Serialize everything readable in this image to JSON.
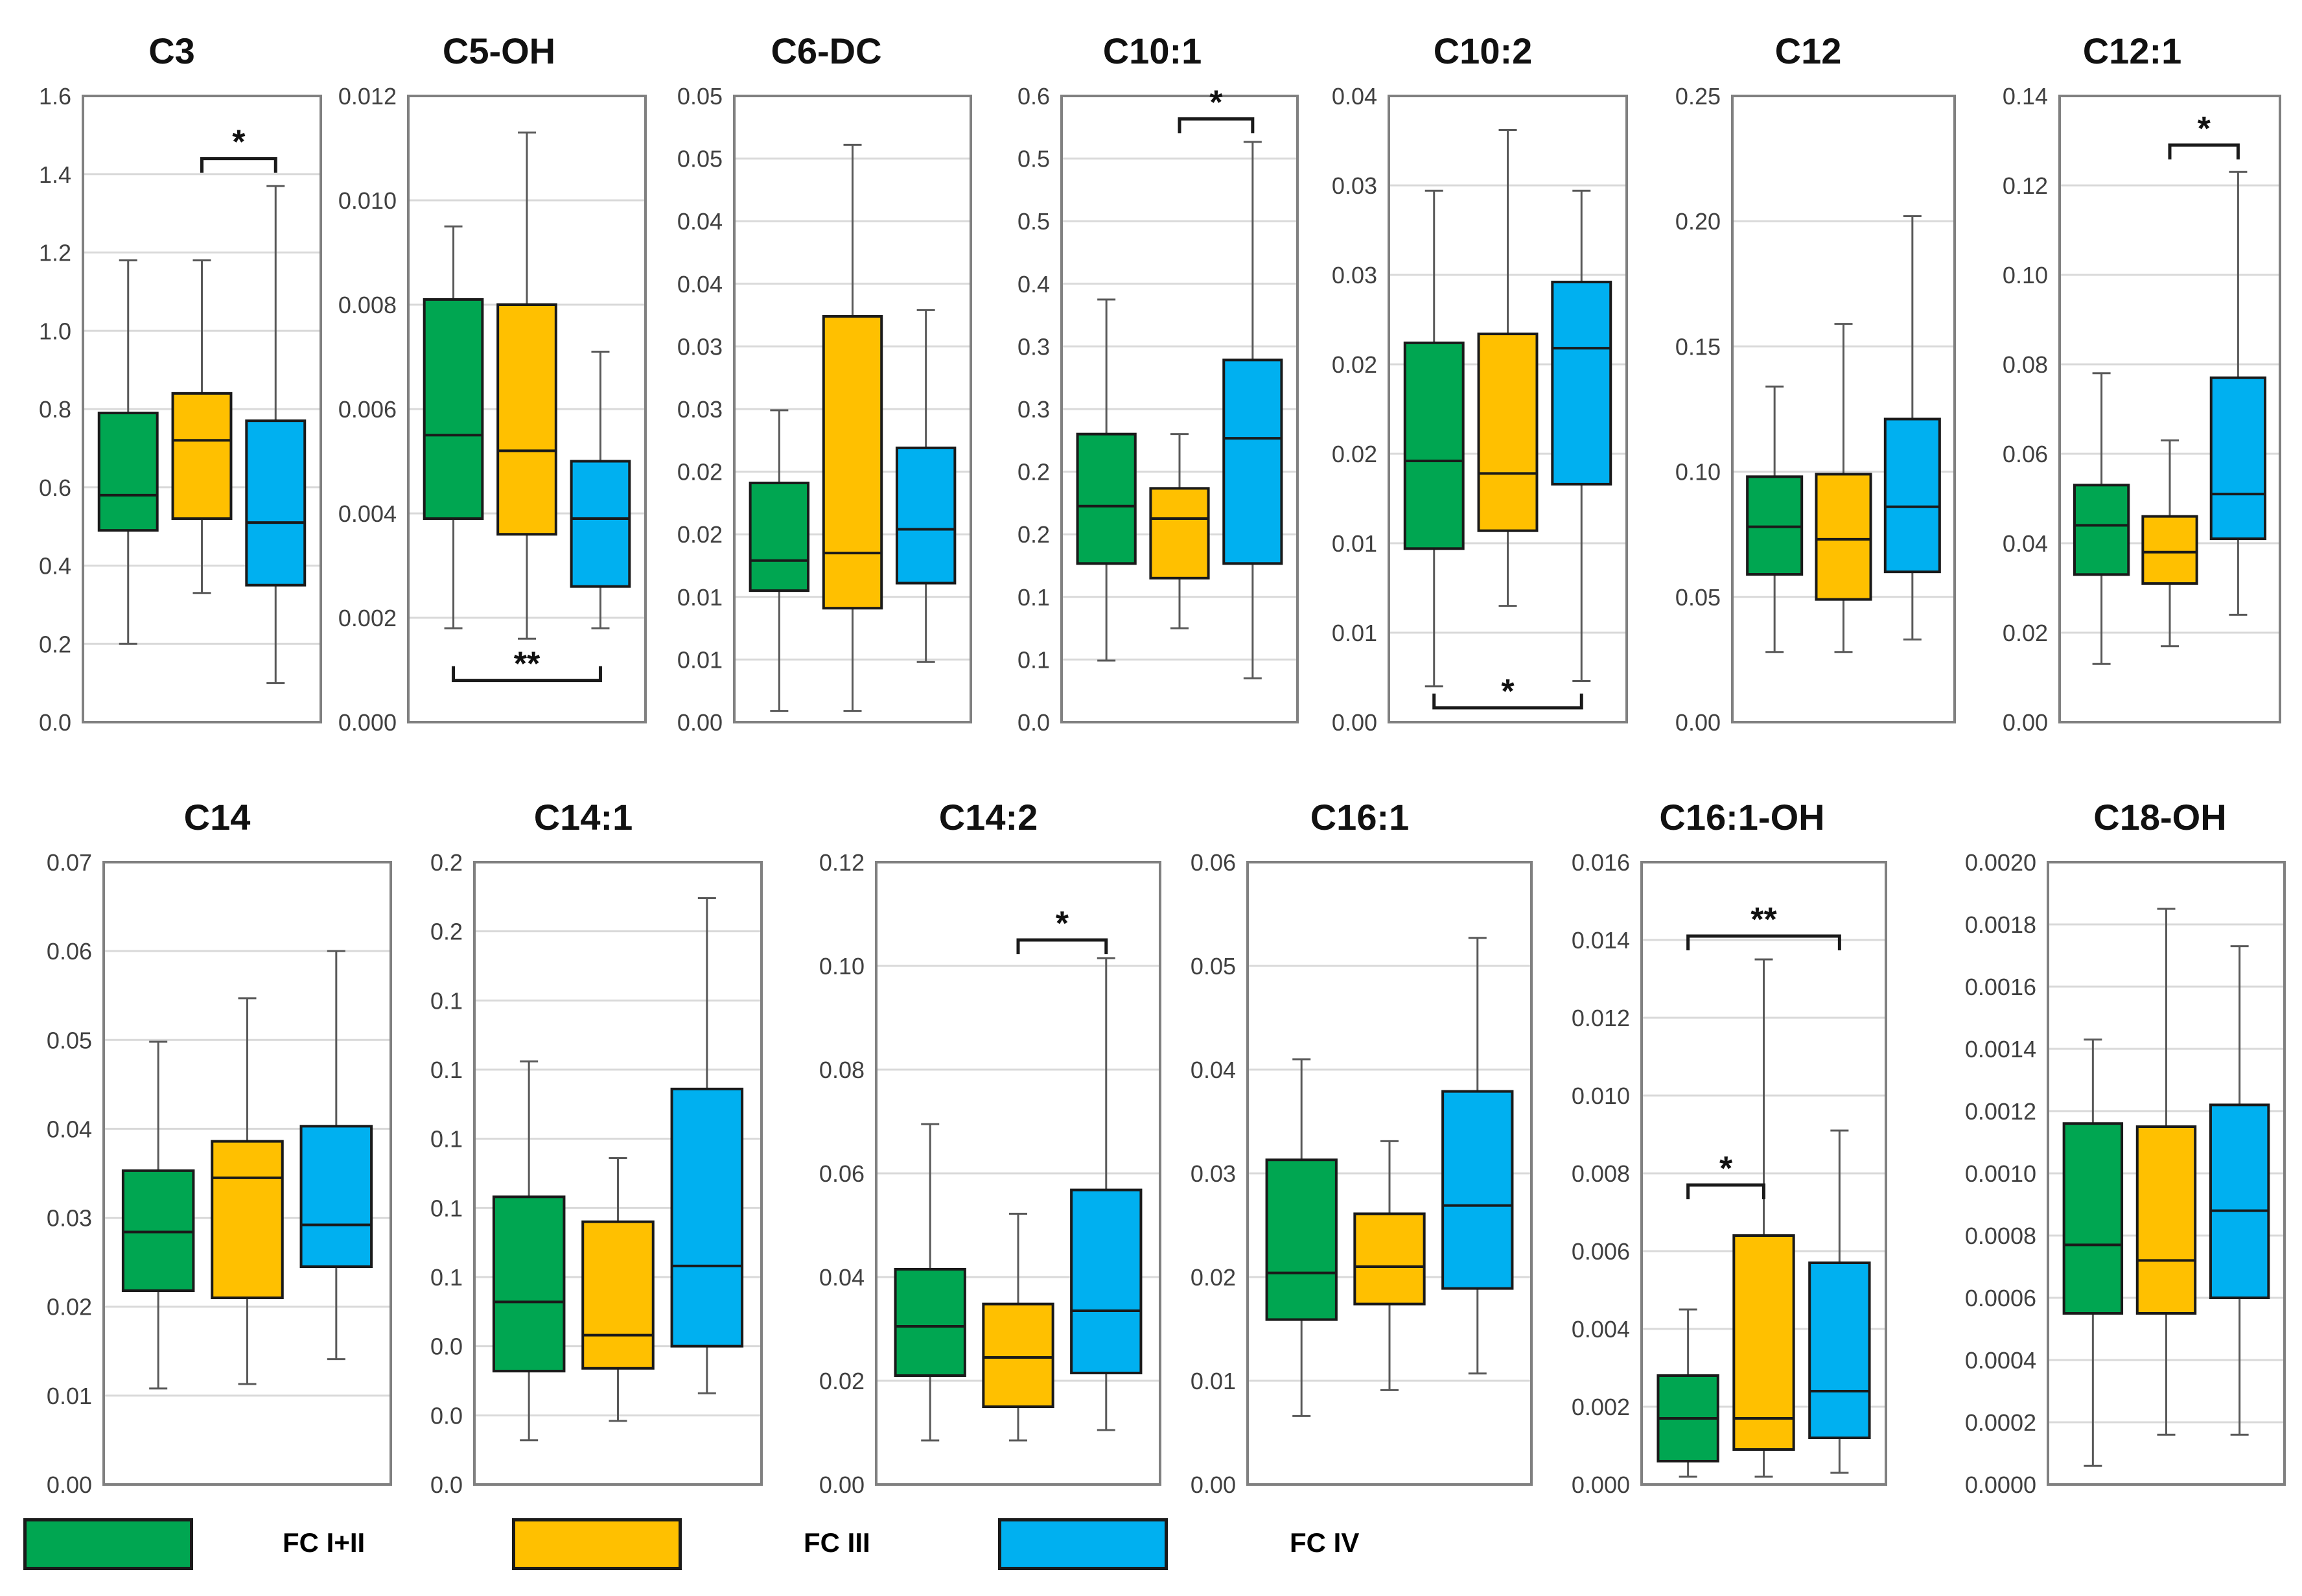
{
  "legend": {
    "items": [
      {
        "label": "FC I+II",
        "color": "#00a651"
      },
      {
        "label": "FC III",
        "color": "#ffc000"
      },
      {
        "label": "FC IV",
        "color": "#00b0f0"
      }
    ]
  },
  "chart_data": [
    {
      "type": "box",
      "title": "C3",
      "ylim": [
        0,
        1.6
      ],
      "ticks": [
        "0.0",
        "0.2",
        "0.4",
        "0.6",
        "0.8",
        "1.0",
        "1.2",
        "1.4",
        "1.6"
      ],
      "series": [
        {
          "name": "FC I+II",
          "color": "#00a651",
          "min": 0.2,
          "q1": 0.49,
          "median": 0.58,
          "q3": 0.79,
          "max": 1.18
        },
        {
          "name": "FC III",
          "color": "#ffc000",
          "min": 0.33,
          "q1": 0.52,
          "median": 0.72,
          "q3": 0.84,
          "max": 1.18
        },
        {
          "name": "FC IV",
          "color": "#00b0f0",
          "min": 0.1,
          "q1": 0.35,
          "median": 0.51,
          "q3": 0.77,
          "max": 1.37
        }
      ],
      "significance": [
        {
          "from": 1,
          "to": 2,
          "label": "*",
          "value": 1.44,
          "pos": "top"
        }
      ]
    },
    {
      "type": "box",
      "title": "C5-OH",
      "ylim": [
        0,
        0.012
      ],
      "ticks": [
        "0.000",
        "0.002",
        "0.004",
        "0.006",
        "0.008",
        "0.010",
        "0.012"
      ],
      "series": [
        {
          "name": "FC I+II",
          "color": "#00a651",
          "min": 0.0018,
          "q1": 0.0039,
          "median": 0.0055,
          "q3": 0.0081,
          "max": 0.0095
        },
        {
          "name": "FC III",
          "color": "#ffc000",
          "min": 0.0016,
          "q1": 0.0036,
          "median": 0.0052,
          "q3": 0.008,
          "max": 0.0113
        },
        {
          "name": "FC IV",
          "color": "#00b0f0",
          "min": 0.0018,
          "q1": 0.0026,
          "median": 0.0039,
          "q3": 0.005,
          "max": 0.0071
        }
      ],
      "significance": [
        {
          "from": 0,
          "to": 2,
          "label": "**",
          "value": 0.0008,
          "pos": "bottom"
        }
      ]
    },
    {
      "type": "box",
      "title": "C6-DC",
      "ylim": [
        0,
        0.05
      ],
      "ticks": [
        "0.00",
        "0.01",
        "0.01",
        "0.02",
        "0.02",
        "0.03",
        "0.03",
        "0.04",
        "0.04",
        "0.05",
        "0.05"
      ],
      "series": [
        {
          "name": "FC I+II",
          "color": "#00a651",
          "min": 0.0009,
          "q1": 0.0105,
          "median": 0.0129,
          "q3": 0.0191,
          "max": 0.0249
        },
        {
          "name": "FC III",
          "color": "#ffc000",
          "min": 0.0009,
          "q1": 0.0091,
          "median": 0.0135,
          "q3": 0.0324,
          "max": 0.0461
        },
        {
          "name": "FC IV",
          "color": "#00b0f0",
          "min": 0.0048,
          "q1": 0.0111,
          "median": 0.0154,
          "q3": 0.0219,
          "max": 0.0329
        }
      ],
      "significance": []
    },
    {
      "type": "box",
      "title": "C10:1",
      "ylim": [
        0,
        0.6
      ],
      "ticks": [
        "0.0",
        "0.1",
        "0.1",
        "0.2",
        "0.2",
        "0.3",
        "0.3",
        "0.4",
        "0.5",
        "0.5",
        "0.6"
      ],
      "series": [
        {
          "name": "FC I+II",
          "color": "#00a651",
          "min": 0.059,
          "q1": 0.152,
          "median": 0.207,
          "q3": 0.276,
          "max": 0.405
        },
        {
          "name": "FC III",
          "color": "#ffc000",
          "min": 0.09,
          "q1": 0.138,
          "median": 0.195,
          "q3": 0.224,
          "max": 0.276
        },
        {
          "name": "FC IV",
          "color": "#00b0f0",
          "min": 0.042,
          "q1": 0.152,
          "median": 0.272,
          "q3": 0.347,
          "max": 0.556
        }
      ],
      "significance": [
        {
          "from": 1,
          "to": 2,
          "label": "*",
          "value": 0.578,
          "pos": "top"
        }
      ]
    },
    {
      "type": "box",
      "title": "C10:2",
      "ylim": [
        0,
        0.035
      ],
      "ticks": [
        "0.00",
        "0.01",
        "0.01",
        "0.02",
        "0.02",
        "0.03",
        "0.03",
        "0.04"
      ],
      "series": [
        {
          "name": "FC I+II",
          "color": "#00a651",
          "min": 0.002,
          "q1": 0.0097,
          "median": 0.0146,
          "q3": 0.0212,
          "max": 0.0297
        },
        {
          "name": "FC III",
          "color": "#ffc000",
          "min": 0.0065,
          "q1": 0.0107,
          "median": 0.0139,
          "q3": 0.0217,
          "max": 0.0331
        },
        {
          "name": "FC IV",
          "color": "#00b0f0",
          "min": 0.0023,
          "q1": 0.0133,
          "median": 0.0209,
          "q3": 0.0246,
          "max": 0.0297
        }
      ],
      "significance": [
        {
          "from": 0,
          "to": 2,
          "label": "*",
          "value": 0.0008,
          "pos": "bottom"
        }
      ]
    },
    {
      "type": "box",
      "title": "C12",
      "ylim": [
        0,
        0.25
      ],
      "ticks": [
        "0.00",
        "0.05",
        "0.10",
        "0.15",
        "0.20",
        "0.25"
      ],
      "series": [
        {
          "name": "FC I+II",
          "color": "#00a651",
          "min": 0.028,
          "q1": 0.059,
          "median": 0.078,
          "q3": 0.098,
          "max": 0.134
        },
        {
          "name": "FC III",
          "color": "#ffc000",
          "min": 0.028,
          "q1": 0.049,
          "median": 0.073,
          "q3": 0.099,
          "max": 0.159
        },
        {
          "name": "FC IV",
          "color": "#00b0f0",
          "min": 0.033,
          "q1": 0.06,
          "median": 0.086,
          "q3": 0.121,
          "max": 0.202
        }
      ],
      "significance": []
    },
    {
      "type": "box",
      "title": "C12:1",
      "ylim": [
        0,
        0.14
      ],
      "ticks": [
        "0.00",
        "0.02",
        "0.04",
        "0.06",
        "0.08",
        "0.10",
        "0.12",
        "0.14"
      ],
      "series": [
        {
          "name": "FC I+II",
          "color": "#00a651",
          "min": 0.013,
          "q1": 0.033,
          "median": 0.044,
          "q3": 0.053,
          "max": 0.078
        },
        {
          "name": "FC III",
          "color": "#ffc000",
          "min": 0.017,
          "q1": 0.031,
          "median": 0.038,
          "q3": 0.046,
          "max": 0.063
        },
        {
          "name": "FC IV",
          "color": "#00b0f0",
          "min": 0.024,
          "q1": 0.041,
          "median": 0.051,
          "q3": 0.077,
          "max": 0.123
        }
      ],
      "significance": [
        {
          "from": 1,
          "to": 2,
          "label": "*",
          "value": 0.129,
          "pos": "top"
        }
      ]
    },
    {
      "type": "box",
      "title": "C14",
      "ylim": [
        0,
        0.07
      ],
      "ticks": [
        "0.00",
        "0.01",
        "0.02",
        "0.03",
        "0.04",
        "0.05",
        "0.06",
        "0.07"
      ],
      "series": [
        {
          "name": "FC I+II",
          "color": "#00a651",
          "min": 0.0108,
          "q1": 0.0218,
          "median": 0.0284,
          "q3": 0.0353,
          "max": 0.0498
        },
        {
          "name": "FC III",
          "color": "#ffc000",
          "min": 0.0113,
          "q1": 0.021,
          "median": 0.0345,
          "q3": 0.0386,
          "max": 0.0547
        },
        {
          "name": "FC IV",
          "color": "#00b0f0",
          "min": 0.0141,
          "q1": 0.0245,
          "median": 0.0292,
          "q3": 0.0403,
          "max": 0.06
        }
      ],
      "significance": []
    },
    {
      "type": "box",
      "title": "C14:1",
      "ylim": [
        0,
        0.225
      ],
      "ticks": [
        "0.0",
        "0.0",
        "0.0",
        "0.1",
        "0.1",
        "0.1",
        "0.1",
        "0.1",
        "0.2",
        "0.2"
      ],
      "series": [
        {
          "name": "FC I+II",
          "color": "#00a651",
          "min": 0.016,
          "q1": 0.041,
          "median": 0.066,
          "q3": 0.104,
          "max": 0.153
        },
        {
          "name": "FC III",
          "color": "#ffc000",
          "min": 0.023,
          "q1": 0.042,
          "median": 0.054,
          "q3": 0.095,
          "max": 0.118
        },
        {
          "name": "FC IV",
          "color": "#00b0f0",
          "min": 0.033,
          "q1": 0.05,
          "median": 0.079,
          "q3": 0.143,
          "max": 0.212
        }
      ],
      "significance": []
    },
    {
      "type": "box",
      "title": "C14:2",
      "ylim": [
        0,
        0.12
      ],
      "ticks": [
        "0.00",
        "0.02",
        "0.04",
        "0.06",
        "0.08",
        "0.10",
        "0.12"
      ],
      "series": [
        {
          "name": "FC I+II",
          "color": "#00a651",
          "min": 0.0085,
          "q1": 0.021,
          "median": 0.0305,
          "q3": 0.0415,
          "max": 0.0695
        },
        {
          "name": "FC III",
          "color": "#ffc000",
          "min": 0.0085,
          "q1": 0.015,
          "median": 0.0245,
          "q3": 0.0348,
          "max": 0.0522
        },
        {
          "name": "FC IV",
          "color": "#00b0f0",
          "min": 0.0105,
          "q1": 0.0215,
          "median": 0.0335,
          "q3": 0.0568,
          "max": 0.1015
        }
      ],
      "significance": [
        {
          "from": 1,
          "to": 2,
          "label": "*",
          "value": 0.105,
          "pos": "top"
        }
      ]
    },
    {
      "type": "box",
      "title": "C16:1",
      "ylim": [
        0,
        0.06
      ],
      "ticks": [
        "0.00",
        "0.01",
        "0.02",
        "0.03",
        "0.04",
        "0.05",
        "0.06"
      ],
      "series": [
        {
          "name": "FC I+II",
          "color": "#00a651",
          "min": 0.0066,
          "q1": 0.0159,
          "median": 0.0204,
          "q3": 0.0313,
          "max": 0.041
        },
        {
          "name": "FC III",
          "color": "#ffc000",
          "min": 0.0091,
          "q1": 0.0174,
          "median": 0.021,
          "q3": 0.0261,
          "max": 0.0331
        },
        {
          "name": "FC IV",
          "color": "#00b0f0",
          "min": 0.0107,
          "q1": 0.0189,
          "median": 0.0269,
          "q3": 0.0379,
          "max": 0.0527
        }
      ],
      "significance": []
    },
    {
      "type": "box",
      "title": "C16:1-OH",
      "ylim": [
        0,
        0.016
      ],
      "ticks": [
        "0.000",
        "0.002",
        "0.004",
        "0.006",
        "0.008",
        "0.010",
        "0.012",
        "0.014",
        "0.016"
      ],
      "series": [
        {
          "name": "FC I+II",
          "color": "#00a651",
          "min": 0.0002,
          "q1": 0.0006,
          "median": 0.0017,
          "q3": 0.0028,
          "max": 0.0045
        },
        {
          "name": "FC III",
          "color": "#ffc000",
          "min": 0.0002,
          "q1": 0.0009,
          "median": 0.0017,
          "q3": 0.0064,
          "max": 0.0135
        },
        {
          "name": "FC IV",
          "color": "#00b0f0",
          "min": 0.0003,
          "q1": 0.0012,
          "median": 0.0024,
          "q3": 0.0057,
          "max": 0.0091
        }
      ],
      "significance": [
        {
          "from": 0,
          "to": 1,
          "label": "*",
          "value": 0.0077,
          "pos": "top"
        },
        {
          "from": 0,
          "to": 2,
          "label": "**",
          "value": 0.0141,
          "pos": "top"
        }
      ]
    },
    {
      "type": "box",
      "title": "C18-OH",
      "ylim": [
        0,
        0.002
      ],
      "ticks": [
        "0.0000",
        "0.0002",
        "0.0004",
        "0.0006",
        "0.0008",
        "0.0010",
        "0.0012",
        "0.0014",
        "0.0016",
        "0.0018",
        "0.0020"
      ],
      "series": [
        {
          "name": "FC I+II",
          "color": "#00a651",
          "min": 6e-05,
          "q1": 0.00055,
          "median": 0.00077,
          "q3": 0.00116,
          "max": 0.00143
        },
        {
          "name": "FC III",
          "color": "#ffc000",
          "min": 0.00016,
          "q1": 0.00055,
          "median": 0.00072,
          "q3": 0.00115,
          "max": 0.00185
        },
        {
          "name": "FC IV",
          "color": "#00b0f0",
          "min": 0.00016,
          "q1": 0.0006,
          "median": 0.00088,
          "q3": 0.00122,
          "max": 0.00173
        }
      ],
      "significance": []
    }
  ]
}
